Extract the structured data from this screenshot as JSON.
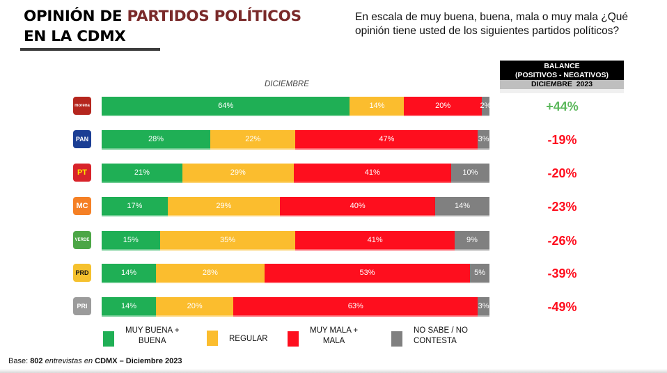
{
  "header": {
    "title_part1": "OPINIÓN DE ",
    "title_accent": "PARTIDOS POLÍTICOS",
    "title_line2": "EN LA CDMX",
    "question": "En escala de muy buena, buena, mala o muy mala ¿Qué opinión tiene usted de los siguientes partidos políticos?"
  },
  "balance_header": {
    "line1": "BALANCE",
    "line2": "(POSITIVOS - NEGATIVOS)",
    "period": "DICIEMBRE  2023"
  },
  "colors": {
    "muy_buena_buena": "#1faf55",
    "regular": "#fbbd2e",
    "muy_mala_mala": "#fe0e1e",
    "no_sabe": "#808080",
    "balance_positive": "#5cb85c",
    "balance_negative": "#fe0e1e",
    "title_accent": "#7a2a2a"
  },
  "chart_data": {
    "type": "bar",
    "orientation": "horizontal",
    "stacked": true,
    "title": "OPINIÓN DE PARTIDOS POLÍTICOS EN LA CDMX",
    "subtitle": "DICIEMBRE",
    "categories": [
      "MORENA",
      "PAN",
      "PT",
      "MC",
      "VERDE",
      "PRD",
      "PRI"
    ],
    "series": [
      {
        "name": "MUY BUENA + BUENA",
        "values": [
          64,
          28,
          21,
          17,
          15,
          14,
          14
        ]
      },
      {
        "name": "REGULAR",
        "values": [
          14,
          22,
          29,
          29,
          35,
          28,
          20
        ]
      },
      {
        "name": "MUY MALA + MALA",
        "values": [
          20,
          47,
          41,
          40,
          41,
          53,
          63
        ]
      },
      {
        "name": "NO SABE / NO CONTESTA",
        "values": [
          2,
          3,
          10,
          14,
          9,
          5,
          3
        ]
      }
    ],
    "labels": [
      [
        "64%",
        "14%",
        "20%",
        "2%"
      ],
      [
        "28%",
        "22%",
        "47%",
        "3%"
      ],
      [
        "21%",
        "29%",
        "41%",
        "10%"
      ],
      [
        "17%",
        "29%",
        "40%",
        "14%"
      ],
      [
        "15%",
        "35%",
        "41%",
        "9%"
      ],
      [
        "14%",
        "28%",
        "53%",
        "5%"
      ],
      [
        "14%",
        "20%",
        "63%",
        "3%"
      ]
    ],
    "balance": [
      "+44%",
      "-19%",
      "-20%",
      "-23%",
      "-26%",
      "-39%",
      "-49%"
    ],
    "balance_values": [
      44,
      -19,
      -20,
      -23,
      -26,
      -39,
      -49
    ],
    "xlim": [
      0,
      100
    ],
    "xlabel": "",
    "ylabel": "",
    "legend_position": "bottom",
    "grid": false
  },
  "parties": [
    {
      "name": "morena",
      "logo_text": "morena",
      "logo_bg": "#b5261e",
      "logo_fg": "#ffffff"
    },
    {
      "name": "pan",
      "logo_text": "PAN",
      "logo_bg": "#1b3e94",
      "logo_fg": "#ffffff"
    },
    {
      "name": "pt",
      "logo_text": "PT",
      "logo_bg": "#d8232a",
      "logo_fg": "#ffe100"
    },
    {
      "name": "mc",
      "logo_text": "MC",
      "logo_bg": "#f58025",
      "logo_fg": "#ffffff"
    },
    {
      "name": "verde",
      "logo_text": "VERDE",
      "logo_bg": "#4ca646",
      "logo_fg": "#ffffff"
    },
    {
      "name": "prd",
      "logo_text": "PRD",
      "logo_bg": "#f5c12e",
      "logo_fg": "#111111"
    },
    {
      "name": "pri",
      "logo_text": "PRI",
      "logo_bg": "#9b9b9b",
      "logo_fg": "#ffffff"
    }
  ],
  "legend": [
    {
      "label_line1": "MUY BUENA +",
      "label_line2": "BUENA"
    },
    {
      "label_line1": "REGULAR",
      "label_line2": ""
    },
    {
      "label_line1": "MUY MALA +",
      "label_line2": "MALA"
    },
    {
      "label_line1": "NO SABE / NO",
      "label_line2": "CONTESTA"
    }
  ],
  "footer": {
    "base_prefix": "Base: ",
    "base_count": "802",
    "base_mid": " entrevistas en ",
    "base_place_date": "CDMX – Diciembre 2023"
  }
}
